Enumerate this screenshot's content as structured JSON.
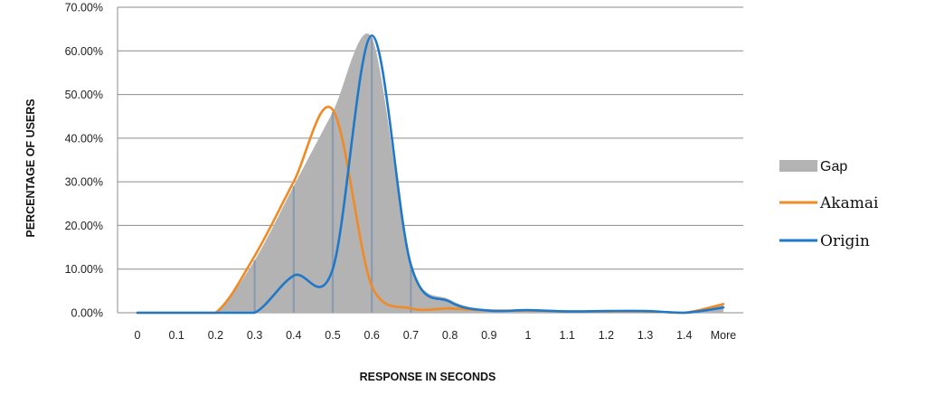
{
  "chart_data": {
    "type": "area",
    "title": "",
    "xlabel": "RESPONSE IN SECONDS",
    "ylabel": "PERCENTAGE OF USERS",
    "categories": [
      "0",
      "0.1",
      "0.2",
      "0.3",
      "0.4",
      "0.5",
      "0.6",
      "0.7",
      "0.8",
      "0.9",
      "1",
      "1.1",
      "1.2",
      "1.3",
      "1.4",
      "More"
    ],
    "y_tick_labels": [
      "0.00%",
      "10.00%",
      "20.00%",
      "30.00%",
      "40.00%",
      "50.00%",
      "60.00%",
      "70.00%"
    ],
    "ylim": [
      0,
      70
    ],
    "grid": true,
    "legend_position": "right",
    "series": [
      {
        "name": "Gap",
        "values": [
          0,
          0,
          0,
          12,
          29,
          46,
          63,
          11,
          3,
          0.5,
          0.3,
          0.3,
          0.3,
          0.3,
          0,
          2
        ],
        "color": "#b3b3b3"
      },
      {
        "name": "Akamai",
        "values": [
          0,
          0,
          0,
          13,
          30,
          46.5,
          6,
          1,
          1,
          0.5,
          0.5,
          0.3,
          0.3,
          0.3,
          0,
          2
        ],
        "color": "#f08a24"
      },
      {
        "name": "Origin",
        "values": [
          0,
          0,
          0,
          0,
          8.5,
          10,
          63.5,
          11,
          2.5,
          0.5,
          0.6,
          0.3,
          0.4,
          0.4,
          0,
          1.2
        ],
        "color": "#1f78c8"
      }
    ],
    "dividers_at": [
      "0.3",
      "0.4",
      "0.5",
      "0.6",
      "0.7"
    ]
  }
}
